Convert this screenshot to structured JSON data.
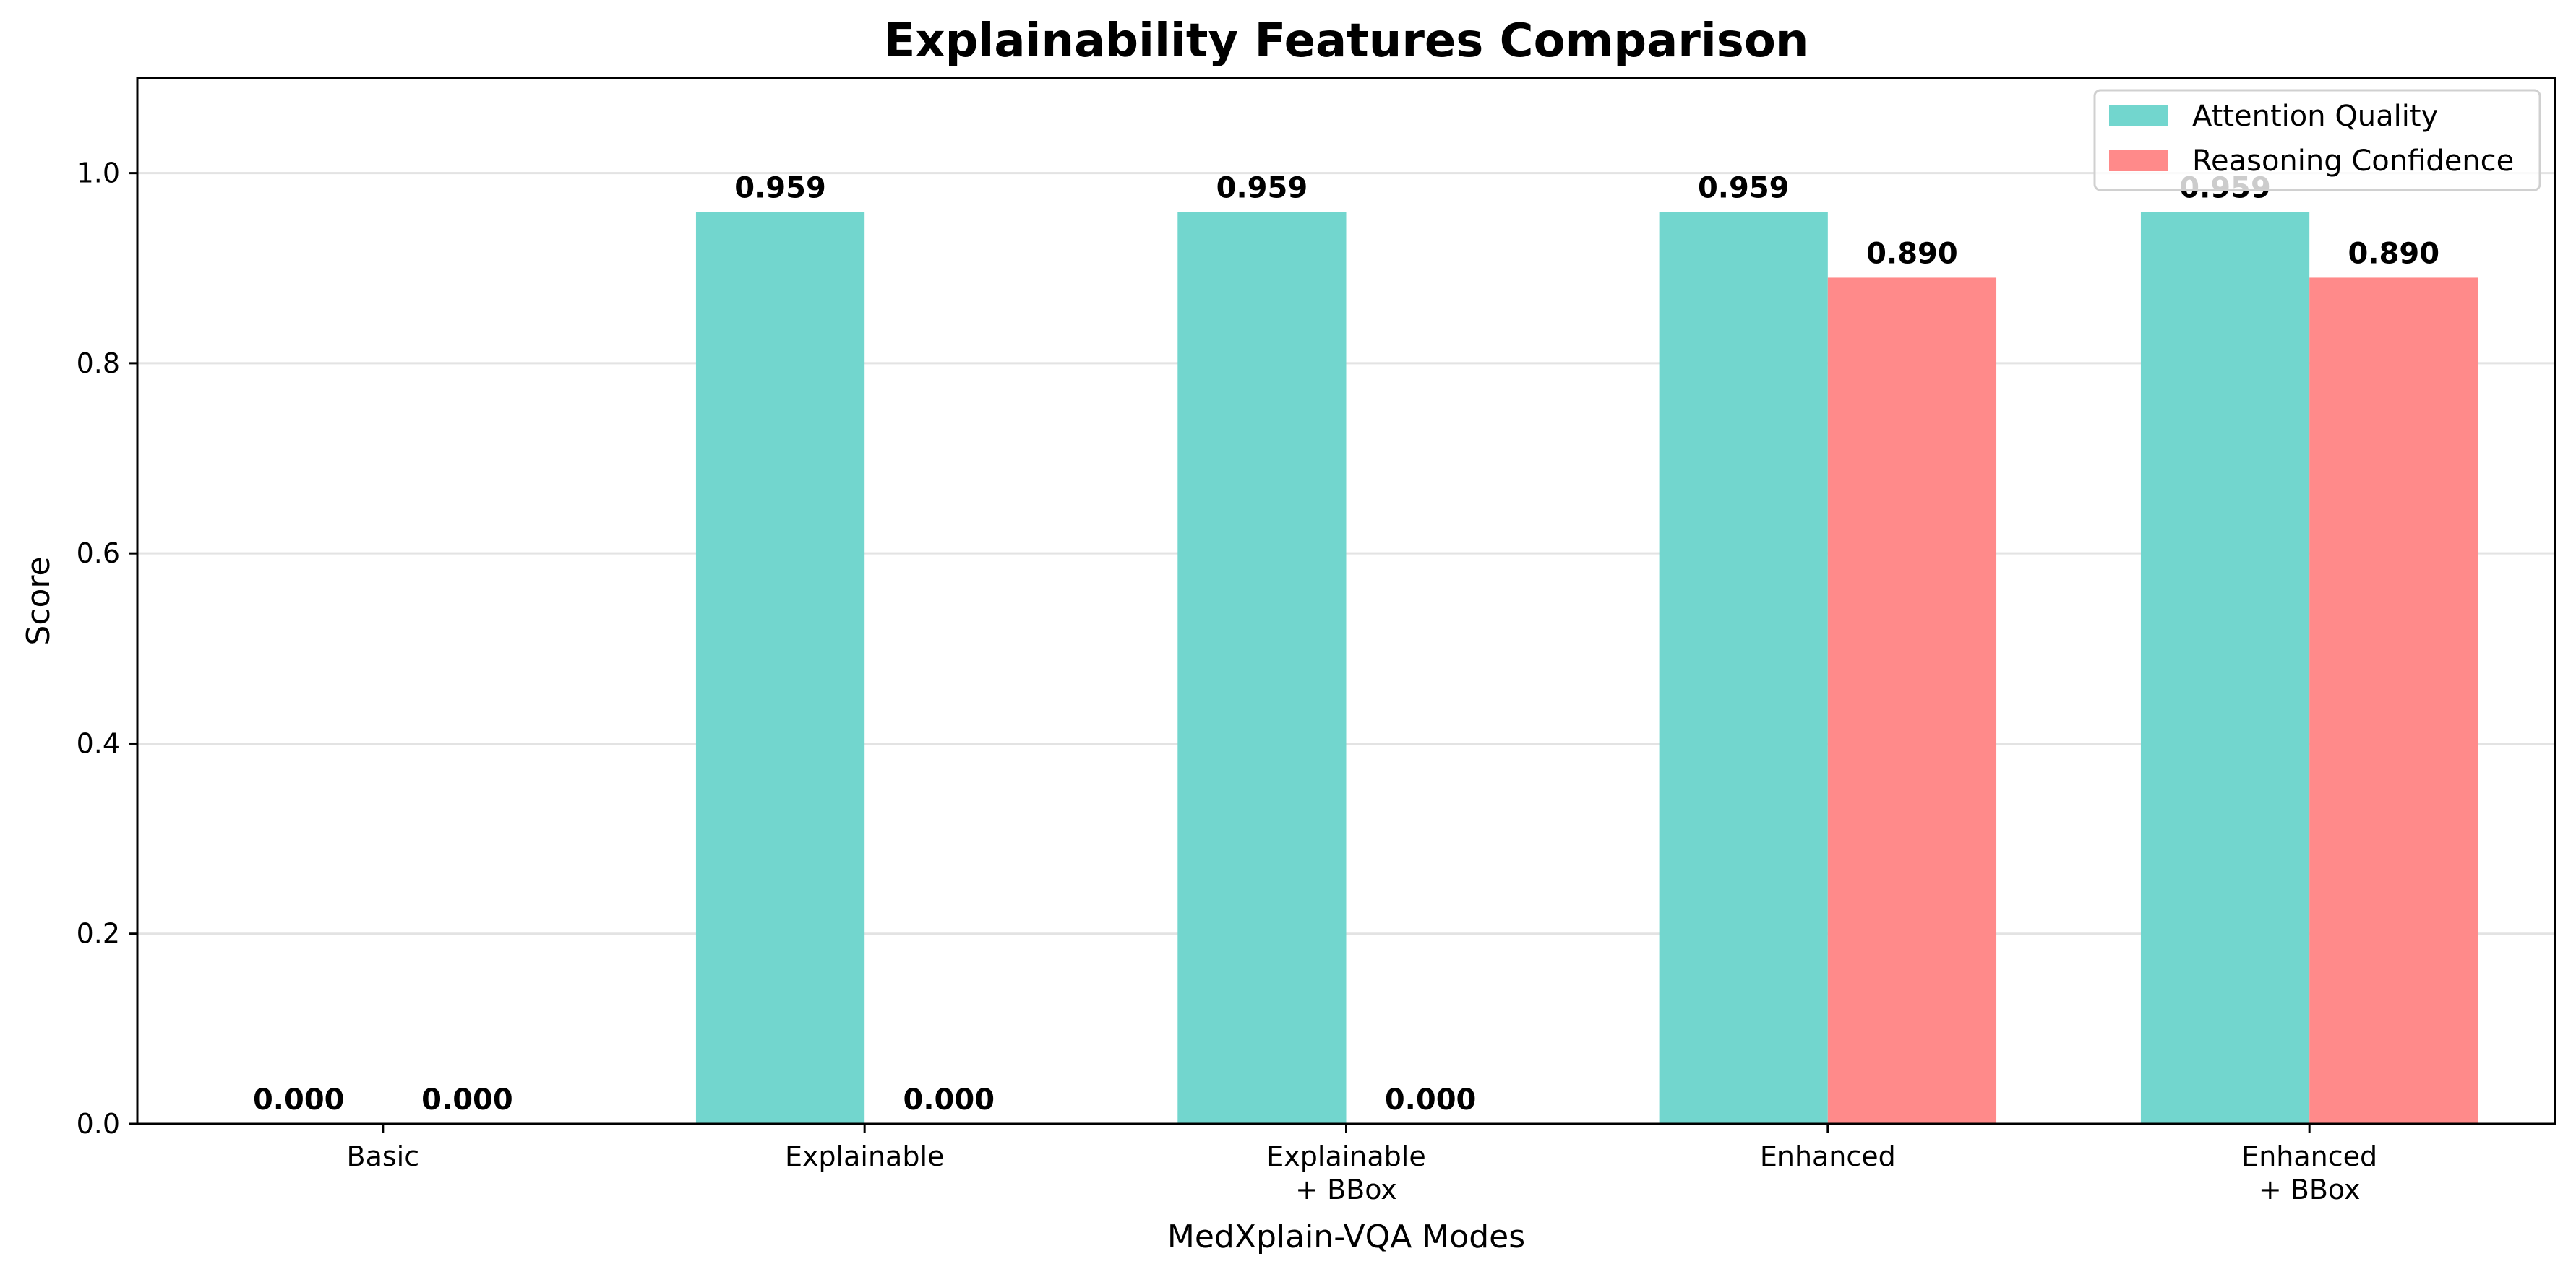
{
  "chart_data": {
    "type": "bar",
    "title": "Explainability Features Comparison",
    "xlabel": "MedXplain-VQA Modes",
    "ylabel": "Score",
    "categories": [
      [
        "Basic"
      ],
      [
        "Explainable"
      ],
      [
        "Explainable",
        "+ BBox"
      ],
      [
        "Enhanced"
      ],
      [
        "Enhanced",
        "+ BBox"
      ]
    ],
    "series": [
      {
        "name": "Attention Quality",
        "color": "#72D6CE",
        "values": [
          0.0,
          0.959,
          0.959,
          0.959,
          0.959
        ],
        "labels": [
          "0.000",
          "0.959",
          "0.959",
          "0.959",
          "0.959"
        ]
      },
      {
        "name": "Reasoning Confidence",
        "color": "#FF8A8A",
        "values": [
          0.0,
          0.0,
          0.0,
          0.89,
          0.89
        ],
        "labels": [
          "0.000",
          "0.000",
          "0.000",
          "0.890",
          "0.890"
        ]
      }
    ],
    "ylim": [
      0,
      1.1
    ],
    "yticks": [
      "0.0",
      "0.2",
      "0.4",
      "0.6",
      "0.8",
      "1.0"
    ],
    "grid": "horizontal",
    "legend_position": "top-right"
  }
}
